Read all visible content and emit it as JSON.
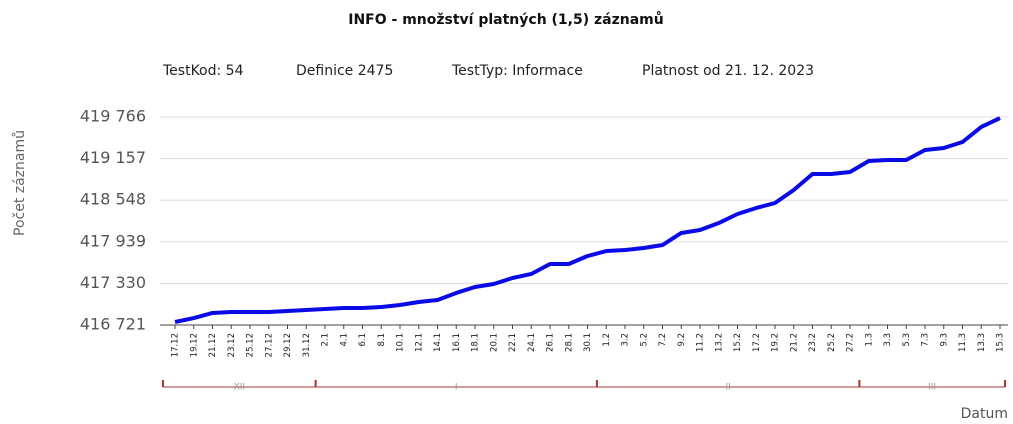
{
  "chart_data": {
    "type": "line",
    "title": "INFO - množství platných (1,5) záznamů",
    "info": [
      "TestKod: 54",
      "Definice 2475",
      "TestTyp: Informace",
      "Platnost od 21. 12. 2023"
    ],
    "ylabel": "Počet záznamů",
    "xlabel": "Datum",
    "categories": [
      "17.12",
      "19.12",
      "21.12",
      "23.12",
      "25.12",
      "27.12",
      "29.12",
      "31.12",
      "2.1",
      "4.1",
      "6.1",
      "8.1",
      "10.1",
      "12.1",
      "14.1",
      "16.1",
      "18.1",
      "20.1",
      "22.1",
      "24.1",
      "26.1",
      "28.1",
      "30.1",
      "1.2",
      "3.2",
      "5.2",
      "7.2",
      "9.2",
      "11.2",
      "13.2",
      "15.2",
      "17.2",
      "19.2",
      "21.2",
      "23.2",
      "25.2",
      "27.2",
      "1.3",
      "3.3",
      "5.3",
      "7.3",
      "9.3",
      "11.3",
      "13.3",
      "15.3"
    ],
    "x_groups": [
      {
        "label": "XII",
        "count": 8
      },
      {
        "label": "I",
        "count": 15
      },
      {
        "label": "II",
        "count": 14
      },
      {
        "label": "III",
        "count": 8
      }
    ],
    "series": [
      {
        "name": "Počet záznamů",
        "color": "#0a0ae6",
        "values": [
          416765,
          416823,
          416897,
          416911,
          416911,
          416911,
          416926,
          416941,
          416955,
          416970,
          416970,
          416985,
          417014,
          417058,
          417087,
          417190,
          417277,
          417321,
          417409,
          417468,
          417614,
          417614,
          417731,
          417804,
          417819,
          417848,
          417892,
          418068,
          418112,
          418214,
          418346,
          418434,
          418507,
          418697,
          418932,
          418932,
          418961,
          419122,
          419137,
          419137,
          419283,
          419312,
          419400,
          419620,
          419751
        ]
      }
    ],
    "ylim": [
      416721,
      419766
    ],
    "yticks": [
      {
        "value": 416721,
        "label": "416 721"
      },
      {
        "value": 417330,
        "label": "417 330"
      },
      {
        "value": 417939,
        "label": "417 939"
      },
      {
        "value": 418548,
        "label": "418 548"
      },
      {
        "value": 419157,
        "label": "419 157"
      },
      {
        "value": 419766,
        "label": "419 766"
      }
    ],
    "grid": true
  }
}
